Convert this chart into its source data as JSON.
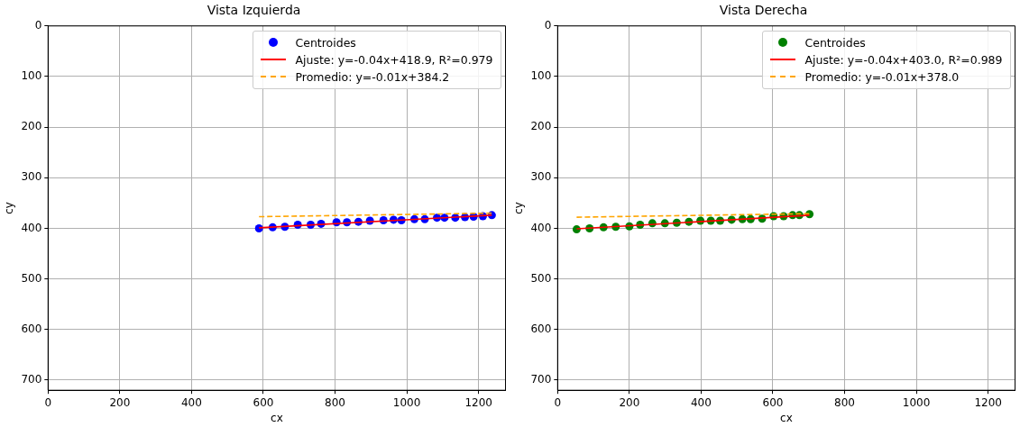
{
  "chart_data": [
    {
      "type": "scatter",
      "title": "Vista Izquierda",
      "xlabel": "cx",
      "ylabel": "cy",
      "xlim": [
        0,
        1275
      ],
      "xticks": [
        0,
        200,
        400,
        600,
        800,
        1000,
        1200
      ],
      "ylim": [
        720,
        0
      ],
      "yticks": [
        0,
        100,
        200,
        300,
        400,
        500,
        600,
        700
      ],
      "grid": true,
      "legend": "top right",
      "series": [
        {
          "name": "Centroides",
          "type": "scatter",
          "marker": "circle",
          "color": "#0000ff",
          "x": [
            588,
            626,
            660,
            696,
            732,
            761,
            804,
            833,
            865,
            897,
            935,
            963,
            985,
            1021,
            1050,
            1084,
            1105,
            1135,
            1162,
            1186,
            1212,
            1237
          ],
          "values": [
            400,
            398,
            397,
            393,
            393,
            391,
            388,
            388,
            387,
            385,
            384,
            383,
            384,
            382,
            382,
            379,
            379,
            379,
            378,
            377,
            376,
            374
          ]
        },
        {
          "name": "Ajuste: y=-0.04x+418.9, R²=0.979",
          "type": "line",
          "marker": "none",
          "line_style": "solid",
          "color": "#ff0000",
          "x": [
            588,
            1237
          ],
          "values": [
            399,
            374
          ]
        },
        {
          "name": "Promedio: y=-0.01x+384.2",
          "type": "line",
          "marker": "none",
          "line_style": "dashed",
          "color": "#ffa500",
          "x": [
            588,
            1237
          ],
          "values": [
            377,
            370
          ]
        }
      ]
    },
    {
      "type": "scatter",
      "title": "Vista Derecha",
      "xlabel": "cx",
      "ylabel": "cy",
      "xlim": [
        0,
        1275
      ],
      "xticks": [
        0,
        200,
        400,
        600,
        800,
        1000,
        1200
      ],
      "ylim": [
        720,
        0
      ],
      "yticks": [
        0,
        100,
        200,
        300,
        400,
        500,
        600,
        700
      ],
      "grid": true,
      "legend": "top right",
      "series": [
        {
          "name": "Centroides",
          "type": "scatter",
          "marker": "circle",
          "color": "#008000",
          "x": [
            53,
            89,
            128,
            162,
            200,
            230,
            264,
            299,
            332,
            366,
            398,
            427,
            453,
            485,
            515,
            538,
            570,
            602,
            630,
            655,
            674,
            702
          ],
          "values": [
            402,
            400,
            398,
            397,
            396,
            393,
            390,
            390,
            389,
            387,
            385,
            385,
            385,
            383,
            382,
            382,
            381,
            376,
            376,
            374,
            374,
            372
          ]
        },
        {
          "name": "Ajuste: y=-0.04x+403.0, R²=0.989",
          "type": "line",
          "marker": "none",
          "line_style": "solid",
          "color": "#ff0000",
          "x": [
            53,
            702
          ],
          "values": [
            401,
            374
          ]
        },
        {
          "name": "Promedio: y=-0.01x+378.0",
          "type": "line",
          "marker": "none",
          "line_style": "dashed",
          "color": "#ffa500",
          "x": [
            53,
            702
          ],
          "values": [
            378,
            371
          ]
        }
      ]
    }
  ]
}
